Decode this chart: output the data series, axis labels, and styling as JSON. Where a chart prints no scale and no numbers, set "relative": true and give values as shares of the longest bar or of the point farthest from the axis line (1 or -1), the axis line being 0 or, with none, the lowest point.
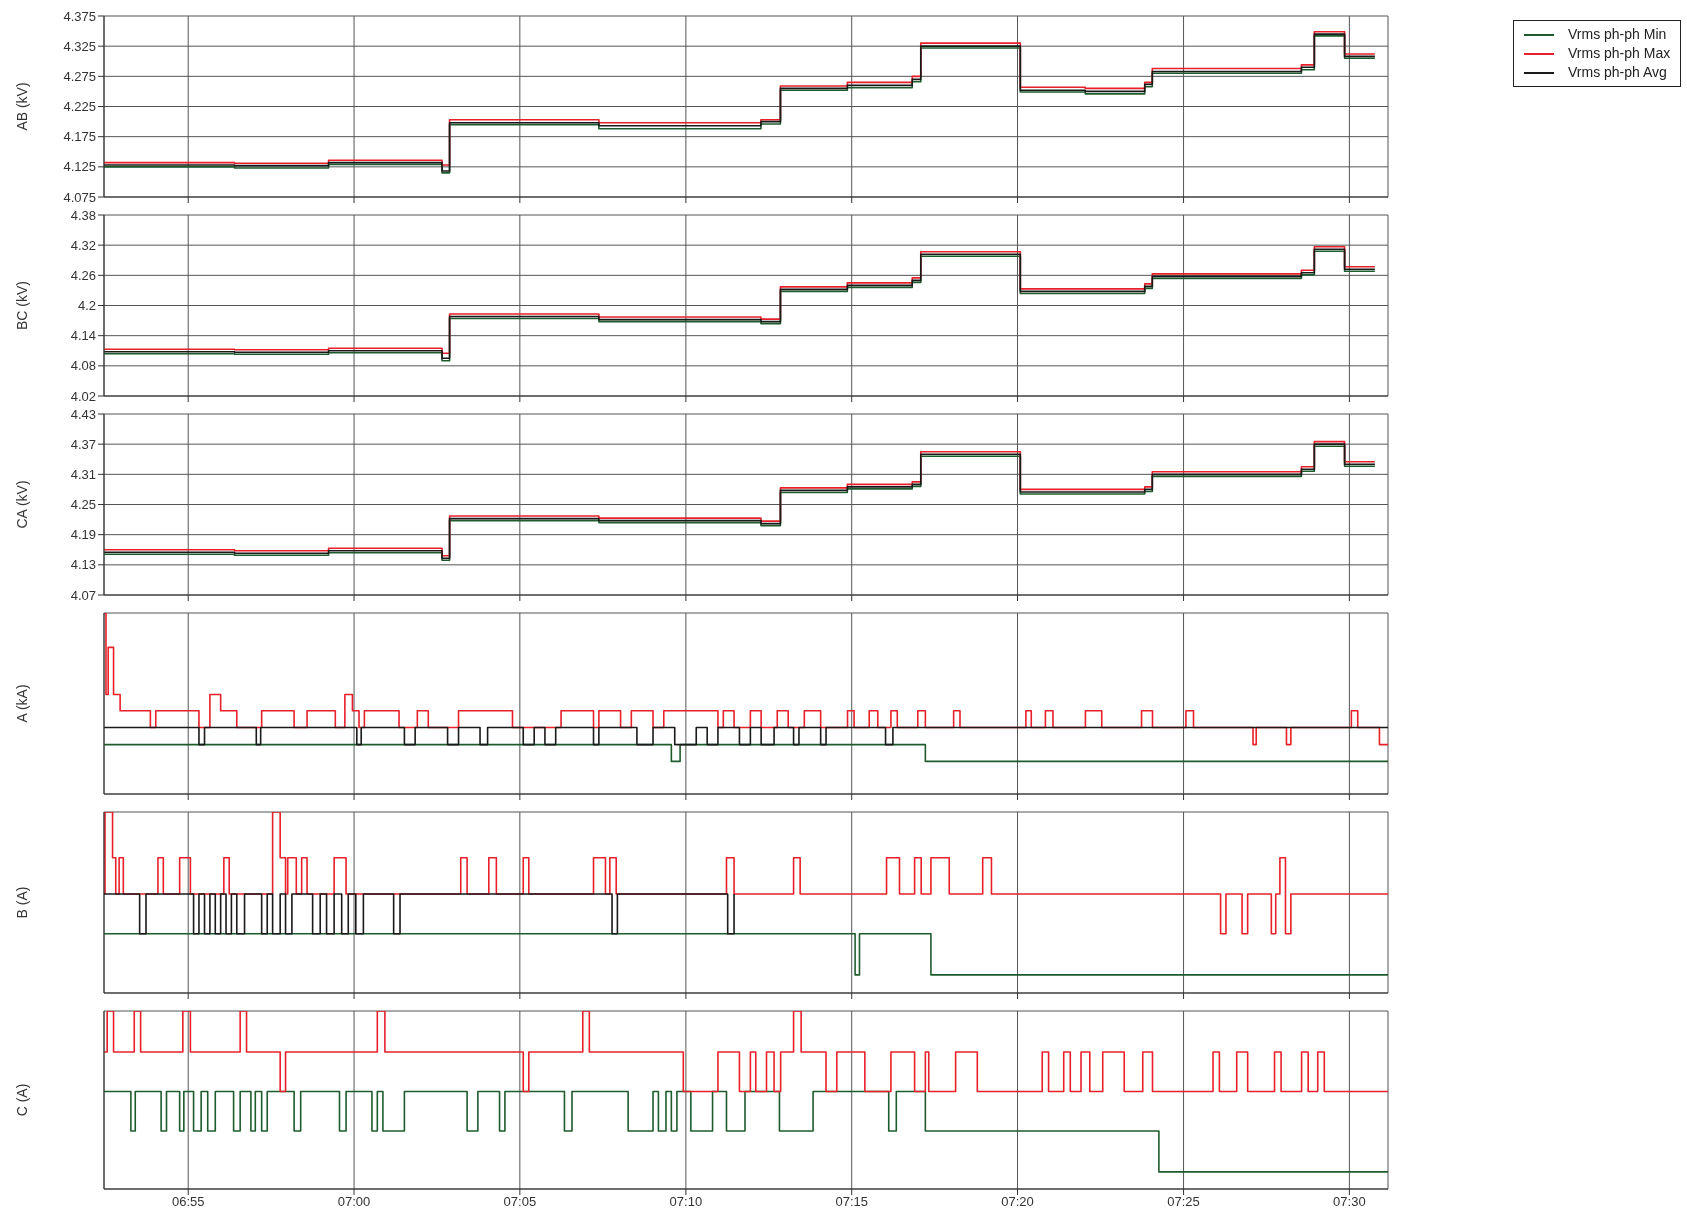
{
  "chart_data": [
    {
      "type": "step",
      "ylabel": "AB (kV)",
      "legend": "top right",
      "grid": true,
      "tick_labels": "y",
      "xlim": [
        6.8744,
        7.5194
      ],
      "xticks": [
        6.9167,
        7,
        7.0833,
        7.1667,
        7.25,
        7.3333,
        7.4167,
        7.5
      ],
      "ylim": [
        4.075,
        4.375
      ],
      "yticks": [
        4.075,
        4.125,
        4.175,
        4.225,
        4.275,
        4.325,
        4.375
      ],
      "x": [
        6.8744,
        6.94,
        6.9872,
        7.0442,
        7.048,
        7.123,
        7.2044,
        7.2142,
        7.2478,
        7.2804,
        7.2847,
        7.3347,
        7.3673,
        7.3972,
        7.401,
        7.4759,
        7.4824,
        7.4976,
        7.5128
      ],
      "series": [
        {
          "name": "Vrms ph-ph Min",
          "color": "#1e5c2e",
          "values": [
            4.125,
            4.123,
            4.129,
            4.115,
            4.195,
            4.188,
            4.196,
            4.252,
            4.256,
            4.266,
            4.322,
            4.249,
            4.246,
            4.258,
            4.28,
            4.286,
            4.342,
            4.305,
            4.305
          ]
        },
        {
          "name": "Vrms ph-ph Max",
          "color": "#e8202a",
          "values": [
            4.132,
            4.131,
            4.136,
            4.128,
            4.203,
            4.198,
            4.203,
            4.259,
            4.265,
            4.275,
            4.33,
            4.257,
            4.255,
            4.265,
            4.288,
            4.294,
            4.349,
            4.312,
            4.312
          ]
        },
        {
          "name": "Vrms ph-ph Avg",
          "color": "#1a1a1a",
          "values": [
            4.128,
            4.127,
            4.132,
            4.118,
            4.198,
            4.193,
            4.2,
            4.255,
            4.26,
            4.27,
            4.325,
            4.252,
            4.25,
            4.262,
            4.283,
            4.29,
            4.345,
            4.308,
            4.308
          ]
        }
      ]
    },
    {
      "type": "step",
      "ylabel": "BC (kV)",
      "grid": true,
      "tick_labels": "y",
      "xlim": [
        6.8744,
        7.5194
      ],
      "xticks": [
        6.9167,
        7,
        7.0833,
        7.1667,
        7.25,
        7.3333,
        7.4167,
        7.5
      ],
      "ylim": [
        4.02,
        4.38
      ],
      "yticks": [
        4.02,
        4.08,
        4.14,
        4.2,
        4.26,
        4.32,
        4.38
      ],
      "x": [
        6.8744,
        6.94,
        6.9872,
        7.0442,
        7.048,
        7.123,
        7.2044,
        7.2142,
        7.2478,
        7.2804,
        7.2847,
        7.3347,
        7.3673,
        7.3972,
        7.401,
        7.4759,
        7.4824,
        7.4976,
        7.5128
      ],
      "series": [
        {
          "color": "#1e5c2e",
          "values": [
            4.104,
            4.103,
            4.106,
            4.09,
            4.174,
            4.168,
            4.164,
            4.228,
            4.236,
            4.246,
            4.298,
            4.224,
            4.224,
            4.234,
            4.254,
            4.261,
            4.308,
            4.268,
            4.268
          ]
        },
        {
          "color": "#e8202a",
          "values": [
            4.113,
            4.112,
            4.115,
            4.105,
            4.183,
            4.177,
            4.173,
            4.237,
            4.245,
            4.255,
            4.307,
            4.233,
            4.233,
            4.243,
            4.263,
            4.27,
            4.317,
            4.277,
            4.277
          ]
        },
        {
          "color": "#1a1a1a",
          "values": [
            4.108,
            4.107,
            4.11,
            4.095,
            4.178,
            4.172,
            4.168,
            4.232,
            4.24,
            4.25,
            4.302,
            4.228,
            4.228,
            4.238,
            4.258,
            4.265,
            4.312,
            4.272,
            4.272
          ]
        }
      ]
    },
    {
      "type": "step",
      "ylabel": "CA (kV)",
      "grid": true,
      "tick_labels": "y",
      "xlim": [
        6.8744,
        7.5194
      ],
      "xticks": [
        6.9167,
        7,
        7.0833,
        7.1667,
        7.25,
        7.3333,
        7.4167,
        7.5
      ],
      "ylim": [
        4.07,
        4.43
      ],
      "yticks": [
        4.07,
        4.13,
        4.19,
        4.25,
        4.31,
        4.37,
        4.43
      ],
      "x": [
        6.8744,
        6.94,
        6.9872,
        7.0442,
        7.048,
        7.123,
        7.2044,
        7.2142,
        7.2478,
        7.2804,
        7.2847,
        7.3347,
        7.3673,
        7.3972,
        7.401,
        7.4759,
        7.4824,
        7.4976,
        7.5128
      ],
      "series": [
        {
          "color": "#1e5c2e",
          "values": [
            4.151,
            4.149,
            4.154,
            4.139,
            4.218,
            4.214,
            4.208,
            4.274,
            4.281,
            4.286,
            4.346,
            4.271,
            4.271,
            4.276,
            4.306,
            4.316,
            4.366,
            4.326,
            4.326
          ]
        },
        {
          "color": "#e8202a",
          "values": [
            4.16,
            4.158,
            4.163,
            4.148,
            4.227,
            4.223,
            4.217,
            4.283,
            4.29,
            4.295,
            4.355,
            4.28,
            4.28,
            4.285,
            4.315,
            4.325,
            4.375,
            4.335,
            4.335
          ]
        },
        {
          "color": "#1a1a1a",
          "values": [
            4.155,
            4.153,
            4.158,
            4.143,
            4.222,
            4.218,
            4.212,
            4.278,
            4.285,
            4.29,
            4.35,
            4.275,
            4.275,
            4.28,
            4.31,
            4.32,
            4.37,
            4.33,
            4.33
          ]
        }
      ]
    },
    {
      "type": "step",
      "ylabel": "A (kA)",
      "relative": true,
      "grid": true,
      "tick_labels": false,
      "xlim": [
        6.8744,
        7.5194
      ],
      "xticks": [
        6.9167,
        7,
        7.0833,
        7.1667,
        7.25,
        7.3333,
        7.4167,
        7.5
      ],
      "series": [
        {
          "color": "#1e5c2e",
          "x": [
            6.8744,
            7.1594,
            7.1638,
            7.287,
            7.5194
          ],
          "values": [
            0.273,
            0.18,
            0.273,
            0.18,
            0.18
          ]
        },
        {
          "color": "#e8202a",
          "x": [
            6.8744,
            6.8754,
            6.8765,
            6.8792,
            6.8825,
            6.8977,
            6.9004,
            6.9221,
            6.9276,
            6.933,
            6.9411,
            6.9536,
            6.9699,
            6.9764,
            6.9906,
            6.9954,
            6.9992,
            7.0025,
            7.0052,
            7.0226,
            7.0318,
            7.0373,
            7.0525,
            7.0796,
            7.104,
            7.1203,
            7.123,
            7.1339,
            7.1393,
            7.1502,
            7.1556,
            7.1828,
            7.1855,
            7.1909,
            7.1991,
            7.2045,
            7.2126,
            7.2181,
            7.2262,
            7.2344,
            7.2479,
            7.2512,
            7.2588,
            7.2631,
            7.2697,
            7.2729,
            7.2832,
            7.287,
            7.3012,
            7.3044,
            7.3375,
            7.3402,
            7.3473,
            7.3511,
            7.3674,
            7.3756,
            7.3956,
            7.4011,
            7.4179,
            7.4217,
            7.4516,
            7.4532,
            7.4684,
            7.4706,
            7.501,
            7.5042,
            7.5151,
            7.5194
          ],
          "values": [
            1.0,
            0.55,
            0.81,
            0.55,
            0.46,
            0.367,
            0.46,
            0.367,
            0.55,
            0.46,
            0.367,
            0.46,
            0.367,
            0.46,
            0.367,
            0.55,
            0.46,
            0.367,
            0.46,
            0.367,
            0.46,
            0.367,
            0.46,
            0.367,
            0.46,
            0.367,
            0.46,
            0.367,
            0.46,
            0.367,
            0.46,
            0.367,
            0.46,
            0.367,
            0.46,
            0.367,
            0.46,
            0.367,
            0.46,
            0.367,
            0.46,
            0.367,
            0.46,
            0.367,
            0.46,
            0.367,
            0.46,
            0.367,
            0.46,
            0.367,
            0.46,
            0.367,
            0.46,
            0.367,
            0.46,
            0.367,
            0.46,
            0.367,
            0.46,
            0.367,
            0.273,
            0.367,
            0.273,
            0.367,
            0.46,
            0.367,
            0.273,
            0.273
          ]
        },
        {
          "color": "#1a1a1a",
          "x": [
            6.8744,
            6.9221,
            6.9249,
            6.9509,
            6.9531,
            7.0014,
            7.0036,
            7.0253,
            7.0307,
            7.047,
            7.0525,
            7.0633,
            7.0671,
            7.085,
            7.0905,
            7.0959,
            7.1013,
            7.1203,
            7.123,
            7.1421,
            7.1502,
            7.1611,
            7.1719,
            7.1774,
            7.1828,
            7.1936,
            7.1991,
            7.2045,
            7.211,
            7.2208,
            7.2235,
            7.2344,
            7.2371,
            7.267,
            7.2707,
            7.5194
          ],
          "values": [
            0.367,
            0.273,
            0.367,
            0.273,
            0.367,
            0.273,
            0.367,
            0.273,
            0.367,
            0.273,
            0.367,
            0.273,
            0.367,
            0.273,
            0.367,
            0.273,
            0.367,
            0.273,
            0.367,
            0.273,
            0.367,
            0.273,
            0.367,
            0.273,
            0.367,
            0.273,
            0.367,
            0.273,
            0.367,
            0.273,
            0.367,
            0.273,
            0.367,
            0.273,
            0.367,
            0.367
          ]
        }
      ]
    },
    {
      "type": "step",
      "ylabel": "B (A)",
      "relative": true,
      "grid": true,
      "tick_labels": false,
      "xlim": [
        6.8744,
        7.5194
      ],
      "xticks": [
        6.9167,
        7,
        7.0833,
        7.1667,
        7.25,
        7.3333,
        7.4167,
        7.5
      ],
      "series": [
        {
          "color": "#1e5c2e",
          "x": [
            6.8744,
            7.2517,
            7.2539,
            7.2898,
            7.5194
          ],
          "values": [
            0.327,
            0.1,
            0.327,
            0.1,
            0.1
          ]
        },
        {
          "color": "#e8202a",
          "x": [
            6.8744,
            6.8749,
            6.8787,
            6.8803,
            6.882,
            6.8841,
            6.9015,
            6.9042,
            6.9124,
            6.9178,
            6.9346,
            6.9373,
            6.9591,
            6.9629,
            6.9656,
            6.9667,
            6.971,
            6.9737,
            6.9764,
            6.99,
            6.996,
            7.0536,
            7.0568,
            7.0677,
            7.0715,
            7.085,
            7.0878,
            7.1203,
            7.1263,
            7.1285,
            7.1317,
            7.1871,
            7.1909,
            7.2208,
            7.2241,
            7.2675,
            7.274,
            7.2816,
            7.2849,
            7.2898,
            7.299,
            7.3158,
            7.3202,
            7.4353,
            7.438,
            7.4461,
            7.4489,
            7.4608,
            7.463,
            7.4651,
            7.4679,
            7.4706,
            7.5194
          ],
          "values": [
            0.547,
            1.0,
            0.747,
            0.547,
            0.747,
            0.547,
            0.747,
            0.547,
            0.747,
            0.547,
            0.747,
            0.547,
            1.0,
            0.747,
            0.547,
            0.747,
            0.547,
            0.747,
            0.547,
            0.747,
            0.547,
            0.747,
            0.547,
            0.747,
            0.547,
            0.747,
            0.547,
            0.747,
            0.547,
            0.747,
            0.547,
            0.747,
            0.547,
            0.747,
            0.547,
            0.747,
            0.547,
            0.747,
            0.547,
            0.747,
            0.547,
            0.747,
            0.547,
            0.327,
            0.547,
            0.327,
            0.547,
            0.327,
            0.547,
            0.747,
            0.327,
            0.547,
            0.547
          ]
        },
        {
          "color": "#1a1a1a",
          "x": [
            6.8744,
            6.8923,
            6.8955,
            6.9194,
            6.9221,
            6.9249,
            6.9276,
            6.9303,
            6.933,
            6.9357,
            6.9384,
            6.9411,
            6.945,
            6.9536,
            6.9564,
            6.9591,
            6.9629,
            6.9656,
            6.9688,
            6.9792,
            6.983,
            6.9862,
            6.99,
            6.9938,
            6.9971,
            7.0009,
            7.0047,
            7.0199,
            7.0231,
            7.1296,
            7.1323,
            7.1877,
            7.1909
          ],
          "values": [
            0.547,
            0.327,
            0.547,
            0.327,
            0.547,
            0.327,
            0.547,
            0.327,
            0.547,
            0.327,
            0.547,
            0.327,
            0.547,
            0.327,
            0.547,
            0.327,
            0.547,
            0.327,
            0.547,
            0.327,
            0.547,
            0.327,
            0.547,
            0.327,
            0.547,
            0.327,
            0.547,
            0.327,
            0.547,
            0.327,
            0.547,
            0.327,
            0.547
          ]
        }
      ]
    },
    {
      "type": "step",
      "ylabel": "C (A)",
      "relative": true,
      "grid": true,
      "tick_labels": "x",
      "xlim": [
        6.8744,
        7.5194
      ],
      "xticks": [
        {
          "value": 6.9167,
          "label": "06:55"
        },
        {
          "value": 7,
          "label": "07:00"
        },
        {
          "value": 7.0833,
          "label": "07:05"
        },
        {
          "value": 7.1667,
          "label": "07:10"
        },
        {
          "value": 7.25,
          "label": "07:15"
        },
        {
          "value": 7.3333,
          "label": "07:20"
        },
        {
          "value": 7.4167,
          "label": "07:25"
        },
        {
          "value": 7.5,
          "label": "07:30"
        }
      ],
      "series": [
        {
          "color": "#1e5c2e",
          "x": [
            6.8744,
            6.8879,
            6.8901,
            6.9031,
            6.9058,
            6.9124,
            6.9145,
            6.9194,
            6.9232,
            6.9265,
            6.9303,
            6.9395,
            6.9428,
            6.9482,
            6.9504,
            6.9536,
            6.9564,
            6.9699,
            6.9732,
            6.9927,
            6.996,
            7.009,
            7.0117,
            7.0145,
            7.0253,
            7.0568,
            7.0622,
            7.0731,
            7.0758,
            7.1057,
            7.1095,
            7.1377,
            7.1502,
            7.1529,
            7.1567,
            7.1594,
            7.1622,
            7.1692,
            7.1801,
            7.1871,
            7.1964,
            7.2137,
            7.2306,
            7.2686,
            7.2724,
            7.287,
            7.4043,
            7.5194
          ],
          "values": [
            0.548,
            0.326,
            0.548,
            0.326,
            0.548,
            0.326,
            0.548,
            0.326,
            0.548,
            0.326,
            0.548,
            0.326,
            0.548,
            0.326,
            0.548,
            0.326,
            0.548,
            0.326,
            0.548,
            0.326,
            0.548,
            0.326,
            0.548,
            0.326,
            0.548,
            0.326,
            0.548,
            0.326,
            0.548,
            0.326,
            0.548,
            0.326,
            0.548,
            0.326,
            0.548,
            0.326,
            0.548,
            0.326,
            0.548,
            0.326,
            0.548,
            0.326,
            0.548,
            0.326,
            0.548,
            0.326,
            0.096,
            0.096
          ]
        },
        {
          "color": "#e8202a",
          "x": [
            6.8744,
            6.876,
            6.8792,
            6.8896,
            6.8928,
            6.914,
            6.9178,
            6.9428,
            6.946,
            6.9629,
            6.9656,
            7.0117,
            7.0155,
            7.085,
            7.0878,
            7.1149,
            7.1182,
            7.1654,
            7.1828,
            7.1936,
            7.1991,
            7.2018,
            7.2072,
            7.211,
            7.2143,
            7.2208,
            7.2246,
            7.2371,
            7.2425,
            7.2566,
            7.2697,
            7.2816,
            7.287,
            7.2887,
            7.3022,
            7.3131,
            7.3457,
            7.3489,
            7.3565,
            7.3598,
            7.3652,
            7.3696,
            7.3761,
            7.3869,
            7.3962,
            7.4011,
            7.4315,
            7.4347,
            7.4434,
            7.4489,
            7.4624,
            7.4657,
            7.476,
            7.4793,
            7.4841,
            7.4874,
            7.5194
          ],
          "values": [
            0.77,
            1.0,
            0.77,
            1.0,
            0.77,
            1.0,
            0.77,
            1.0,
            0.77,
            0.548,
            0.77,
            1.0,
            0.77,
            0.548,
            0.77,
            1.0,
            0.77,
            0.548,
            0.77,
            0.548,
            0.77,
            0.548,
            0.77,
            0.548,
            0.77,
            1.0,
            0.77,
            0.548,
            0.77,
            0.548,
            0.77,
            0.548,
            0.77,
            0.548,
            0.77,
            0.548,
            0.77,
            0.548,
            0.77,
            0.548,
            0.77,
            0.548,
            0.77,
            0.548,
            0.77,
            0.548,
            0.77,
            0.548,
            0.77,
            0.548,
            0.77,
            0.548,
            0.77,
            0.548,
            0.77,
            0.548,
            0.548
          ]
        }
      ]
    }
  ]
}
